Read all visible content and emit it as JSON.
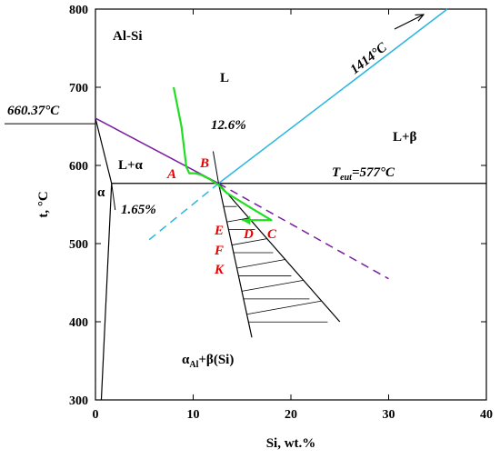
{
  "chart_data": {
    "type": "phase-diagram",
    "title": "Al-Si",
    "xlabel": "Si, wt.%",
    "ylabel": "t, °C",
    "xlim": [
      0,
      40
    ],
    "ylim": [
      300,
      800
    ],
    "x_ticks": [
      "0",
      "10",
      "20",
      "30",
      "40"
    ],
    "y_ticks": [
      "300",
      "400",
      "500",
      "600",
      "700",
      "800"
    ],
    "colors": {
      "liquidus_al": "#7b1fa2",
      "liquidus_si": "#29b6e0",
      "path": "#22dd22",
      "points": "#e60000",
      "lines": "#000000"
    },
    "lines": {
      "liquidus_al": [
        [
          0,
          660.37
        ],
        [
          12.6,
          577
        ]
      ],
      "liquidus_al_extension": [
        [
          12.6,
          577
        ],
        [
          30,
          455
        ]
      ],
      "liquidus_si": [
        [
          12.6,
          577
        ],
        [
          36,
          800
        ]
      ],
      "liquidus_si_extension": [
        [
          5.5,
          505
        ],
        [
          12.6,
          577
        ]
      ],
      "eutectic": [
        [
          1.65,
          577
        ],
        [
          40,
          577
        ]
      ],
      "solvus": [
        [
          0.6,
          300
        ],
        [
          1.65,
          577
        ]
      ],
      "solidus": [
        [
          0,
          660.37
        ],
        [
          1.65,
          577
        ]
      ],
      "kinetic_left": [
        [
          12.6,
          577
        ],
        [
          16,
          380
        ]
      ],
      "kinetic_right": [
        [
          12.6,
          577
        ],
        [
          25,
          400
        ]
      ],
      "path": [
        [
          8,
          700
        ],
        [
          8.8,
          650
        ],
        [
          9.3,
          598
        ],
        [
          9.6,
          590
        ],
        [
          10.2,
          590
        ],
        [
          10.8,
          588
        ],
        [
          11.6,
          583
        ],
        [
          12.6,
          575
        ],
        [
          13.4,
          565
        ],
        [
          16,
          545
        ],
        [
          18,
          530
        ],
        [
          15,
          530
        ]
      ]
    },
    "annotations": {
      "al_melting": "660.37°C",
      "si_melting": "1414°C",
      "eutectic_comp": "12.6%",
      "max_solubility": "1.65%",
      "eutectic_temp_sub": "eut",
      "eutectic_temp_value": "=577°C"
    },
    "regions": {
      "liquid": "L",
      "liquid_alpha": "L+α",
      "liquid_beta": "L+β",
      "alpha": "α",
      "solid_main": "α",
      "solid_sub": "Al",
      "solid_rest": "+β(Si)"
    },
    "points": [
      "A",
      "B",
      "C",
      "D",
      "E",
      "F",
      "K"
    ]
  }
}
